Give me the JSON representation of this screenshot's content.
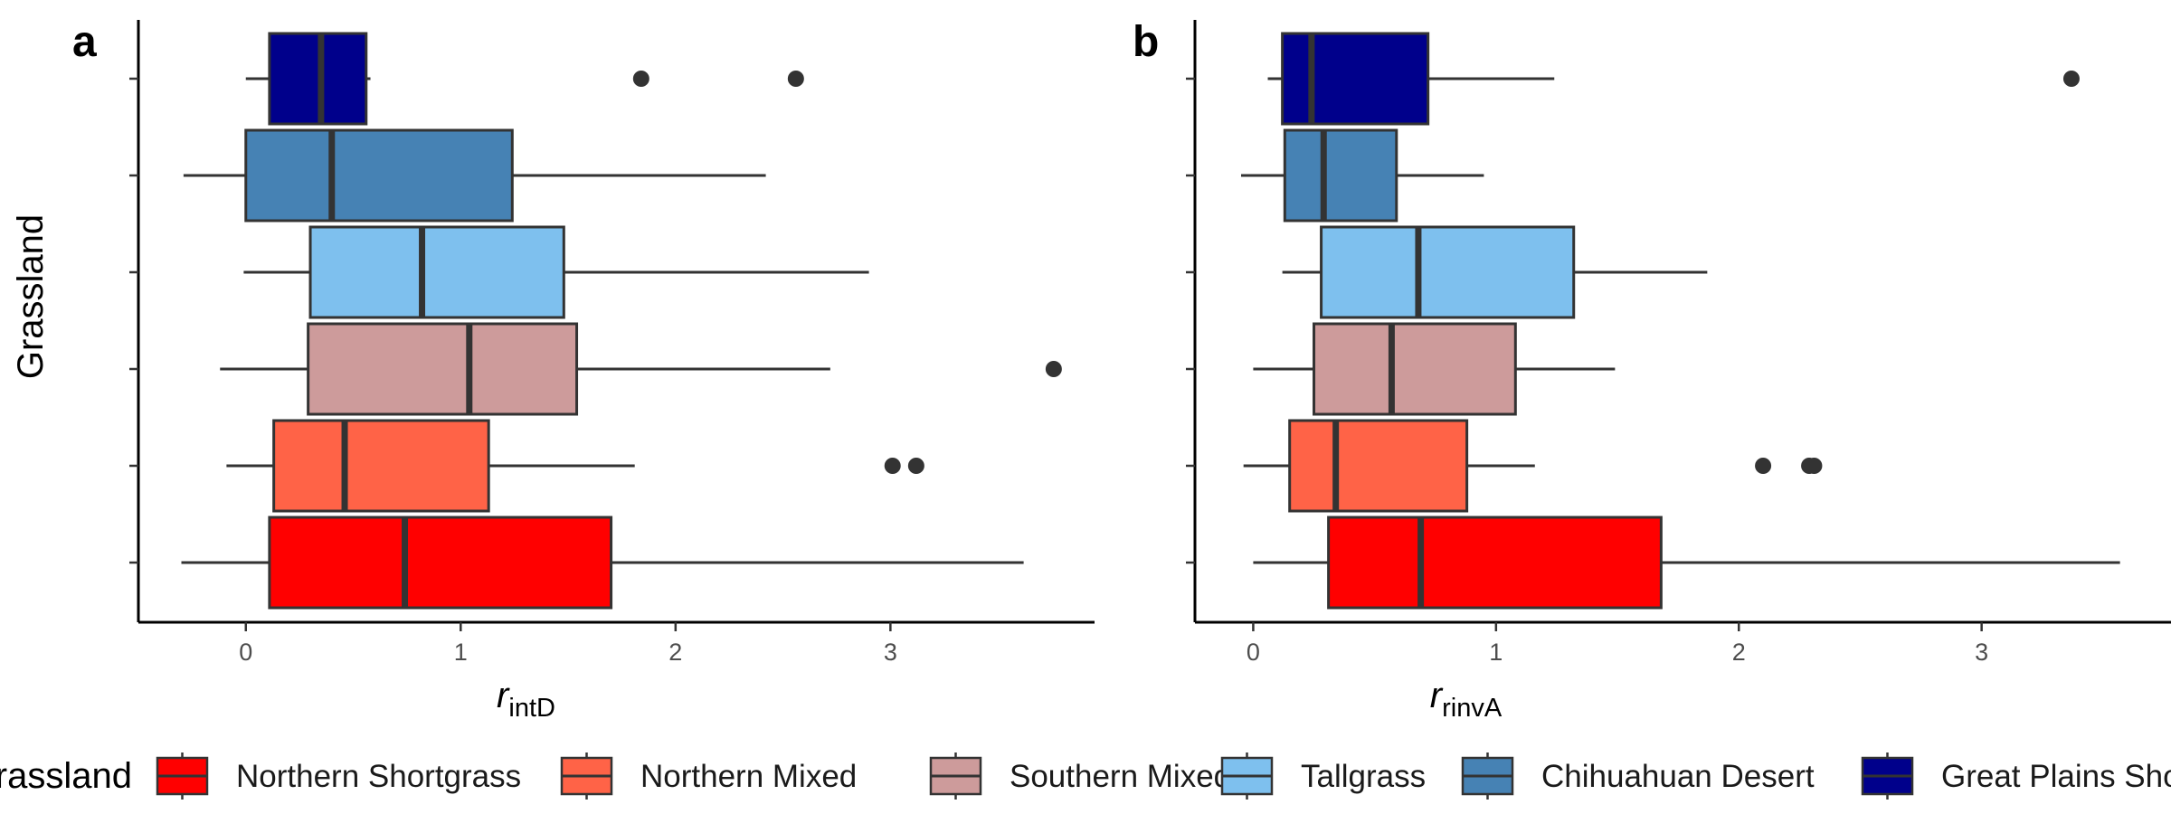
{
  "chart_data": [
    {
      "panel": "a",
      "type": "boxplot",
      "orientation": "horizontal",
      "xlabel": "r",
      "xlabel_subscript": "intD",
      "ylabel": "Grassland",
      "xlim": [
        -0.5,
        3.95
      ],
      "xticks": [
        0,
        1,
        2,
        3
      ],
      "groups": [
        {
          "name": "Northern Shortgrass",
          "min": -0.3,
          "q1": 0.11,
          "median": 0.74,
          "q3": 1.7,
          "max": 3.62,
          "outliers": []
        },
        {
          "name": "Northern Mixed",
          "min": -0.09,
          "q1": 0.13,
          "median": 0.46,
          "q3": 1.13,
          "max": 1.81,
          "outliers": [
            3.01,
            3.12
          ]
        },
        {
          "name": "Southern Mixed",
          "min": -0.12,
          "q1": 0.29,
          "median": 1.04,
          "q3": 1.54,
          "max": 2.72,
          "outliers": [
            3.76
          ]
        },
        {
          "name": "Tallgrass",
          "min": -0.01,
          "q1": 0.3,
          "median": 0.82,
          "q3": 1.48,
          "max": 2.9,
          "outliers": []
        },
        {
          "name": "Chihuahuan Desert",
          "min": -0.29,
          "q1": 0.0,
          "median": 0.4,
          "q3": 1.24,
          "max": 2.42,
          "outliers": []
        },
        {
          "name": "Great Plains Shortgrass",
          "min": 0.0,
          "q1": 0.11,
          "median": 0.35,
          "q3": 0.56,
          "max": 0.58,
          "outliers": [
            1.84,
            2.56
          ]
        }
      ]
    },
    {
      "panel": "b",
      "type": "boxplot",
      "orientation": "horizontal",
      "xlabel": "r",
      "xlabel_subscript": "rinvA",
      "ylabel": "",
      "xlim": [
        -0.24,
        3.78
      ],
      "xticks": [
        0,
        1,
        2,
        3
      ],
      "groups": [
        {
          "name": "Northern Shortgrass",
          "min": 0.0,
          "q1": 0.31,
          "median": 0.69,
          "q3": 1.68,
          "max": 3.57,
          "outliers": []
        },
        {
          "name": "Northern Mixed",
          "min": -0.04,
          "q1": 0.15,
          "median": 0.34,
          "q3": 0.88,
          "max": 1.16,
          "outliers": [
            2.1,
            2.29,
            2.31
          ]
        },
        {
          "name": "Southern Mixed",
          "min": 0.0,
          "q1": 0.25,
          "median": 0.57,
          "q3": 1.08,
          "max": 1.49,
          "outliers": []
        },
        {
          "name": "Tallgrass",
          "min": 0.12,
          "q1": 0.28,
          "median": 0.68,
          "q3": 1.32,
          "max": 1.87,
          "outliers": []
        },
        {
          "name": "Chihuahuan Desert",
          "min": -0.05,
          "q1": 0.13,
          "median": 0.29,
          "q3": 0.59,
          "max": 0.95,
          "outliers": []
        },
        {
          "name": "Great Plains Shortgrass",
          "min": 0.06,
          "q1": 0.12,
          "median": 0.24,
          "q3": 0.72,
          "max": 1.24,
          "outliers": [
            3.37
          ]
        }
      ]
    }
  ],
  "legend": {
    "title": "Grassland",
    "placement": "bottom",
    "items": [
      {
        "label": "Northern Shortgrass",
        "color": "#ff0000"
      },
      {
        "label": "Northern Mixed",
        "color": "#ff6347"
      },
      {
        "label": "Southern Mixed",
        "color": "#cd9b9b"
      },
      {
        "label": "Tallgrass",
        "color": "#7ec0ee"
      },
      {
        "label": "Chihuahuan Desert",
        "color": "#4682b4"
      },
      {
        "label": "Great Plains Shortgrass",
        "color": "#00008b"
      }
    ]
  },
  "colors": {
    "outline": "#333333",
    "axis": "#000000"
  }
}
